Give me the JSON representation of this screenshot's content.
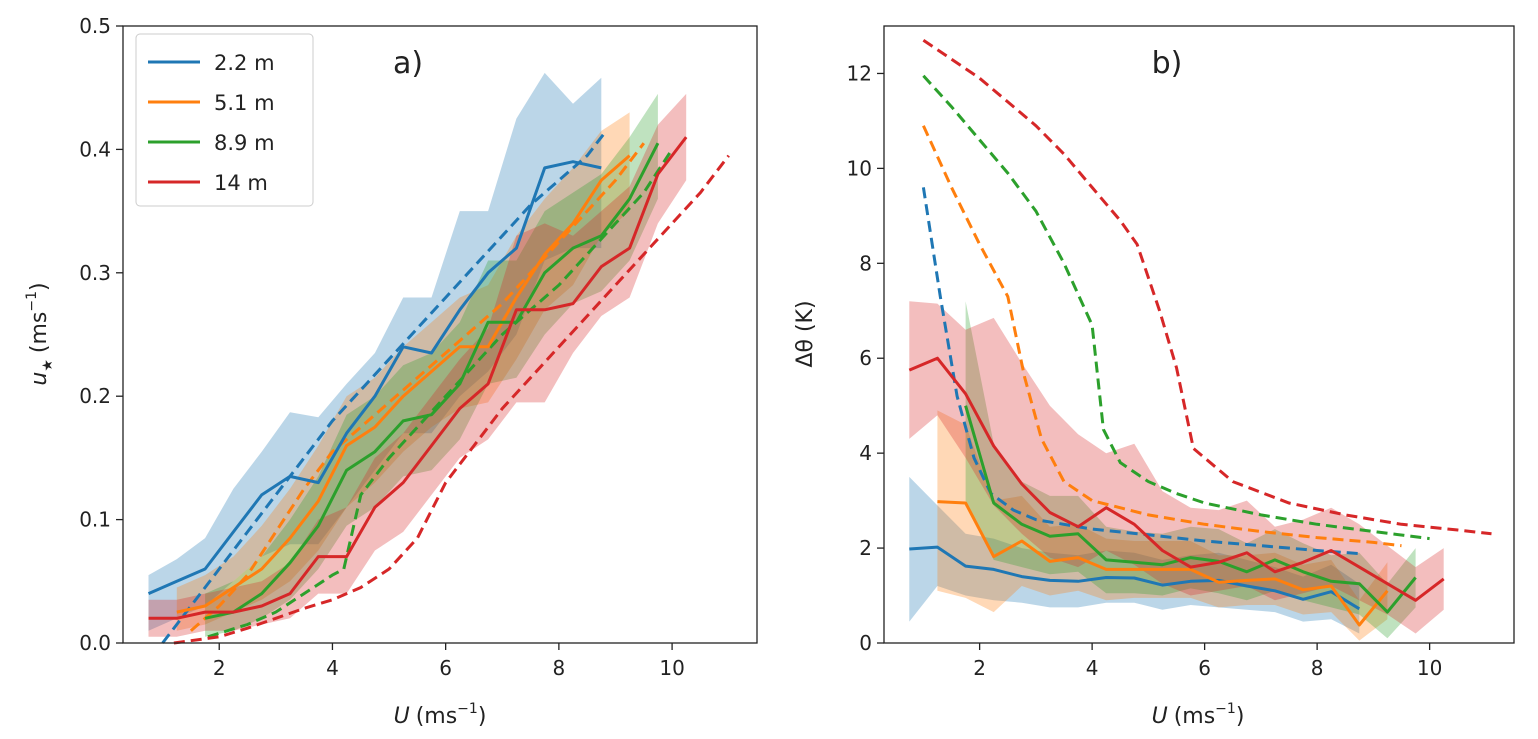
{
  "chart_data": [
    {
      "type": "line",
      "panel_label": "a)",
      "xlabel_var": "U",
      "xlabel_unit": "(ms",
      "xlabel_exp": "−1",
      "xlabel_close": ")",
      "ylabel_var": "u",
      "ylabel_sub": "★",
      "ylabel_unit": "(ms",
      "ylabel_exp": "−1",
      "ylabel_close": ")",
      "xlim": [
        0.3,
        11.5
      ],
      "ylim": [
        0.0,
        0.5
      ],
      "xticks": [
        2,
        4,
        6,
        8,
        10
      ],
      "yticks": [
        0.0,
        0.1,
        0.2,
        0.3,
        0.4,
        0.5
      ],
      "ytick_labels": [
        "0.0",
        "0.1",
        "0.2",
        "0.3",
        "0.4",
        "0.5"
      ],
      "legend_position": "top-left",
      "series": [
        {
          "name": "2.2 m",
          "color": "#1f77b4",
          "x": [
            0.75,
            1.25,
            1.75,
            2.25,
            2.75,
            3.25,
            3.75,
            4.25,
            4.75,
            5.25,
            5.75,
            6.25,
            6.75,
            7.25,
            7.75,
            8.25,
            8.75
          ],
          "y": [
            0.04,
            0.05,
            0.06,
            0.09,
            0.12,
            0.135,
            0.13,
            0.17,
            0.2,
            0.24,
            0.235,
            0.27,
            0.3,
            0.32,
            0.385,
            0.39,
            0.385
          ],
          "band_low": [
            0.01,
            0.02,
            0.03,
            0.05,
            0.07,
            0.08,
            0.08,
            0.11,
            0.14,
            0.17,
            0.17,
            0.2,
            0.22,
            0.25,
            0.31,
            0.32,
            0.32
          ],
          "band_high": [
            0.055,
            0.068,
            0.085,
            0.125,
            0.155,
            0.187,
            0.183,
            0.21,
            0.235,
            0.28,
            0.28,
            0.35,
            0.35,
            0.425,
            0.462,
            0.437,
            0.458
          ],
          "model_x": [
            1.0,
            1.5,
            2.0,
            2.5,
            3.0,
            3.5,
            4.0,
            4.5,
            5.0,
            5.5,
            6.0,
            6.5,
            7.0,
            7.5,
            8.0,
            8.5,
            8.8
          ],
          "model_y": [
            0.0,
            0.03,
            0.06,
            0.09,
            0.12,
            0.15,
            0.18,
            0.205,
            0.23,
            0.255,
            0.28,
            0.305,
            0.33,
            0.355,
            0.375,
            0.395,
            0.413
          ]
        },
        {
          "name": "5.1 m",
          "color": "#ff7f0e",
          "x": [
            1.25,
            1.75,
            2.25,
            2.75,
            3.25,
            3.75,
            4.25,
            4.75,
            5.25,
            5.75,
            6.25,
            6.75,
            7.25,
            7.75,
            8.25,
            8.75,
            9.25
          ],
          "y": [
            0.025,
            0.03,
            0.045,
            0.06,
            0.085,
            0.115,
            0.16,
            0.175,
            0.2,
            0.22,
            0.24,
            0.24,
            0.28,
            0.315,
            0.34,
            0.375,
            0.395
          ],
          "band_low": [
            0.01,
            0.015,
            0.025,
            0.035,
            0.05,
            0.075,
            0.11,
            0.13,
            0.155,
            0.175,
            0.19,
            0.195,
            0.23,
            0.27,
            0.29,
            0.33,
            0.35
          ],
          "band_high": [
            0.045,
            0.055,
            0.07,
            0.095,
            0.125,
            0.16,
            0.2,
            0.215,
            0.24,
            0.26,
            0.28,
            0.29,
            0.33,
            0.36,
            0.385,
            0.415,
            0.43
          ],
          "model_x": [
            1.5,
            2.0,
            2.5,
            3.0,
            3.5,
            4.0,
            4.5,
            5.0,
            5.5,
            6.0,
            6.5,
            7.0,
            7.5,
            8.0,
            8.5,
            9.0,
            9.5
          ],
          "model_y": [
            0.01,
            0.03,
            0.055,
            0.09,
            0.125,
            0.155,
            0.175,
            0.195,
            0.215,
            0.235,
            0.255,
            0.275,
            0.3,
            0.325,
            0.35,
            0.375,
            0.405
          ]
        },
        {
          "name": "8.9 m",
          "color": "#2ca02c",
          "x": [
            1.75,
            2.25,
            2.75,
            3.25,
            3.75,
            4.25,
            4.75,
            5.25,
            5.75,
            6.25,
            6.75,
            7.25,
            7.75,
            8.25,
            8.75,
            9.25,
            9.75
          ],
          "y": [
            0.02,
            0.025,
            0.04,
            0.065,
            0.095,
            0.14,
            0.155,
            0.18,
            0.185,
            0.21,
            0.26,
            0.26,
            0.3,
            0.32,
            0.33,
            0.36,
            0.405
          ],
          "band_low": [
            0.005,
            0.01,
            0.02,
            0.035,
            0.06,
            0.095,
            0.11,
            0.135,
            0.14,
            0.165,
            0.21,
            0.215,
            0.25,
            0.275,
            0.285,
            0.31,
            0.36
          ],
          "band_high": [
            0.04,
            0.05,
            0.07,
            0.1,
            0.135,
            0.185,
            0.2,
            0.225,
            0.235,
            0.26,
            0.31,
            0.31,
            0.35,
            0.365,
            0.38,
            0.41,
            0.445
          ],
          "model_x": [
            1.8,
            2.5,
            3.0,
            3.5,
            4.0,
            4.2,
            4.5,
            5.0,
            5.5,
            6.0,
            6.5,
            7.0,
            7.5,
            8.0,
            8.5,
            9.0,
            9.5,
            10.0
          ],
          "model_y": [
            0.005,
            0.015,
            0.025,
            0.04,
            0.055,
            0.06,
            0.12,
            0.15,
            0.175,
            0.2,
            0.225,
            0.25,
            0.27,
            0.29,
            0.315,
            0.34,
            0.365,
            0.4
          ]
        },
        {
          "name": "14 m",
          "color": "#d62728",
          "x": [
            0.75,
            1.25,
            1.75,
            2.25,
            2.75,
            3.25,
            3.75,
            4.25,
            4.75,
            5.25,
            5.75,
            6.25,
            6.75,
            7.25,
            7.75,
            8.25,
            8.75,
            9.25,
            9.75,
            10.25
          ],
          "y": [
            0.02,
            0.02,
            0.025,
            0.025,
            0.03,
            0.04,
            0.07,
            0.07,
            0.11,
            0.13,
            0.16,
            0.19,
            0.21,
            0.27,
            0.27,
            0.275,
            0.305,
            0.32,
            0.38,
            0.41
          ],
          "band_low": [
            0.005,
            0.005,
            0.01,
            0.01,
            0.015,
            0.02,
            0.04,
            0.04,
            0.075,
            0.09,
            0.12,
            0.15,
            0.165,
            0.195,
            0.195,
            0.235,
            0.265,
            0.28,
            0.34,
            0.375
          ],
          "band_high": [
            0.035,
            0.035,
            0.04,
            0.045,
            0.05,
            0.065,
            0.1,
            0.11,
            0.15,
            0.17,
            0.2,
            0.23,
            0.255,
            0.33,
            0.34,
            0.33,
            0.35,
            0.37,
            0.42,
            0.445
          ],
          "model_x": [
            1.2,
            2.0,
            2.5,
            3.0,
            3.5,
            4.0,
            4.5,
            5.0,
            5.5,
            6.0,
            6.5,
            7.0,
            7.5,
            8.0,
            8.5,
            9.0,
            9.5,
            10.0,
            10.5,
            11.0
          ],
          "model_y": [
            0.0,
            0.005,
            0.012,
            0.02,
            0.028,
            0.035,
            0.045,
            0.06,
            0.085,
            0.13,
            0.16,
            0.19,
            0.215,
            0.24,
            0.265,
            0.29,
            0.315,
            0.34,
            0.365,
            0.395
          ]
        }
      ]
    },
    {
      "type": "line",
      "panel_label": "b)",
      "xlabel_var": "U",
      "xlabel_unit": "(ms",
      "xlabel_exp": "−1",
      "xlabel_close": ")",
      "ylabel": "Δθ (K)",
      "xlim": [
        0.3,
        11.5
      ],
      "ylim": [
        0,
        13
      ],
      "xticks": [
        2,
        4,
        6,
        8,
        10
      ],
      "yticks": [
        0,
        2,
        4,
        6,
        8,
        10,
        12
      ],
      "ytick_labels": [
        "0",
        "2",
        "4",
        "6",
        "8",
        "10",
        "12"
      ],
      "series": [
        {
          "name": "2.2 m",
          "color": "#1f77b4",
          "x": [
            0.75,
            1.25,
            1.75,
            2.25,
            2.75,
            3.25,
            3.75,
            4.25,
            4.75,
            5.25,
            5.75,
            6.25,
            6.75,
            7.25,
            7.75,
            8.25,
            8.75
          ],
          "y": [
            1.98,
            2.02,
            1.62,
            1.55,
            1.4,
            1.32,
            1.3,
            1.38,
            1.37,
            1.22,
            1.3,
            1.32,
            1.2,
            1.1,
            0.92,
            1.08,
            0.72
          ],
          "band_low": [
            0.45,
            1.2,
            1.0,
            0.9,
            0.85,
            0.75,
            0.75,
            0.85,
            0.85,
            0.7,
            0.8,
            0.75,
            0.7,
            0.65,
            0.45,
            0.5,
            0.2
          ],
          "band_high": [
            3.5,
            2.9,
            2.3,
            2.2,
            2.0,
            1.9,
            1.85,
            1.95,
            1.9,
            1.75,
            1.85,
            1.9,
            1.75,
            1.6,
            1.4,
            1.65,
            1.25
          ],
          "model_x": [
            1.0,
            1.3,
            1.6,
            1.9,
            2.2,
            2.6,
            3.0,
            4.0,
            5.0,
            6.0,
            7.0,
            8.0,
            8.8
          ],
          "model_y": [
            9.6,
            7.3,
            5.2,
            3.9,
            3.15,
            2.8,
            2.6,
            2.4,
            2.28,
            2.15,
            2.05,
            1.95,
            1.88
          ]
        },
        {
          "name": "5.1 m",
          "color": "#ff7f0e",
          "x": [
            1.25,
            1.75,
            2.25,
            2.75,
            3.25,
            3.75,
            4.25,
            4.75,
            5.25,
            5.75,
            6.25,
            6.75,
            7.25,
            7.75,
            8.25,
            8.75,
            9.25
          ],
          "y": [
            2.98,
            2.95,
            1.82,
            2.15,
            1.72,
            1.8,
            1.55,
            1.55,
            1.55,
            1.55,
            1.28,
            1.32,
            1.35,
            1.12,
            1.2,
            0.38,
            1.1
          ],
          "band_low": [
            1.1,
            0.95,
            0.65,
            1.2,
            1.0,
            1.1,
            0.9,
            0.95,
            0.95,
            0.95,
            0.75,
            0.8,
            0.8,
            0.6,
            0.65,
            0.05,
            0.5
          ],
          "band_high": [
            4.9,
            4.6,
            3.0,
            3.1,
            2.45,
            2.5,
            2.2,
            2.15,
            2.15,
            2.15,
            1.85,
            1.85,
            1.9,
            1.65,
            1.75,
            0.9,
            1.7
          ],
          "model_x": [
            1.0,
            1.5,
            2.0,
            2.5,
            2.8,
            3.1,
            3.5,
            4.0,
            5.0,
            6.0,
            7.0,
            8.0,
            9.0,
            9.5
          ],
          "model_y": [
            10.9,
            9.6,
            8.4,
            7.3,
            5.6,
            4.3,
            3.4,
            3.0,
            2.7,
            2.5,
            2.35,
            2.22,
            2.12,
            2.05
          ]
        },
        {
          "name": "8.9 m",
          "color": "#2ca02c",
          "x": [
            1.75,
            2.25,
            2.75,
            3.25,
            3.75,
            4.25,
            4.75,
            5.25,
            5.75,
            6.25,
            6.75,
            7.25,
            7.75,
            8.25,
            8.75,
            9.25,
            9.75
          ],
          "y": [
            5.0,
            2.95,
            2.5,
            2.25,
            2.3,
            1.75,
            1.7,
            1.65,
            1.8,
            1.72,
            1.5,
            1.75,
            1.5,
            1.3,
            1.25,
            0.65,
            1.38
          ],
          "band_low": [
            3.0,
            1.75,
            1.6,
            1.45,
            1.5,
            1.05,
            1.05,
            1.0,
            1.15,
            1.05,
            0.9,
            1.1,
            0.9,
            0.75,
            0.6,
            0.1,
            0.75
          ],
          "band_high": [
            7.2,
            4.2,
            3.4,
            3.1,
            3.1,
            2.45,
            2.35,
            2.3,
            2.45,
            2.4,
            2.1,
            2.4,
            2.1,
            1.85,
            1.9,
            1.25,
            2.0
          ],
          "model_x": [
            1.0,
            1.5,
            2.0,
            2.5,
            3.0,
            3.5,
            4.0,
            4.2,
            4.5,
            5.0,
            5.5,
            6.0,
            7.0,
            8.0,
            9.0,
            10.0
          ],
          "model_y": [
            11.95,
            11.3,
            10.6,
            9.9,
            9.1,
            8.0,
            6.7,
            4.5,
            3.8,
            3.4,
            3.15,
            2.95,
            2.7,
            2.5,
            2.35,
            2.2
          ]
        },
        {
          "name": "14 m",
          "color": "#d62728",
          "x": [
            0.75,
            1.25,
            1.75,
            2.25,
            2.75,
            3.25,
            3.75,
            4.25,
            4.75,
            5.25,
            5.75,
            6.25,
            6.75,
            7.25,
            7.75,
            8.25,
            8.75,
            9.25,
            9.75,
            10.25
          ],
          "y": [
            5.75,
            6.0,
            5.25,
            4.15,
            3.35,
            2.75,
            2.45,
            2.85,
            2.5,
            1.95,
            1.6,
            1.7,
            1.9,
            1.5,
            1.7,
            1.95,
            1.6,
            1.25,
            0.9,
            1.35
          ],
          "band_low": [
            4.3,
            4.8,
            3.9,
            2.9,
            2.3,
            1.8,
            1.6,
            1.95,
            1.65,
            1.25,
            1.0,
            1.1,
            1.2,
            0.9,
            1.05,
            1.2,
            0.9,
            0.6,
            0.2,
            0.7
          ],
          "band_high": [
            7.2,
            7.15,
            6.6,
            6.85,
            5.9,
            5.0,
            4.4,
            4.0,
            4.2,
            3.2,
            2.85,
            2.8,
            3.0,
            2.45,
            2.6,
            2.85,
            2.5,
            2.05,
            1.6,
            2.0
          ],
          "model_x": [
            1.0,
            1.5,
            2.0,
            2.5,
            3.0,
            3.5,
            4.0,
            4.5,
            4.8,
            5.2,
            5.5,
            5.8,
            6.5,
            7.5,
            8.5,
            9.5,
            10.5,
            11.1
          ],
          "model_y": [
            12.7,
            12.3,
            11.9,
            11.4,
            10.9,
            10.3,
            9.6,
            8.9,
            8.4,
            7.0,
            5.8,
            4.1,
            3.4,
            2.95,
            2.7,
            2.5,
            2.38,
            2.3
          ]
        }
      ]
    }
  ]
}
